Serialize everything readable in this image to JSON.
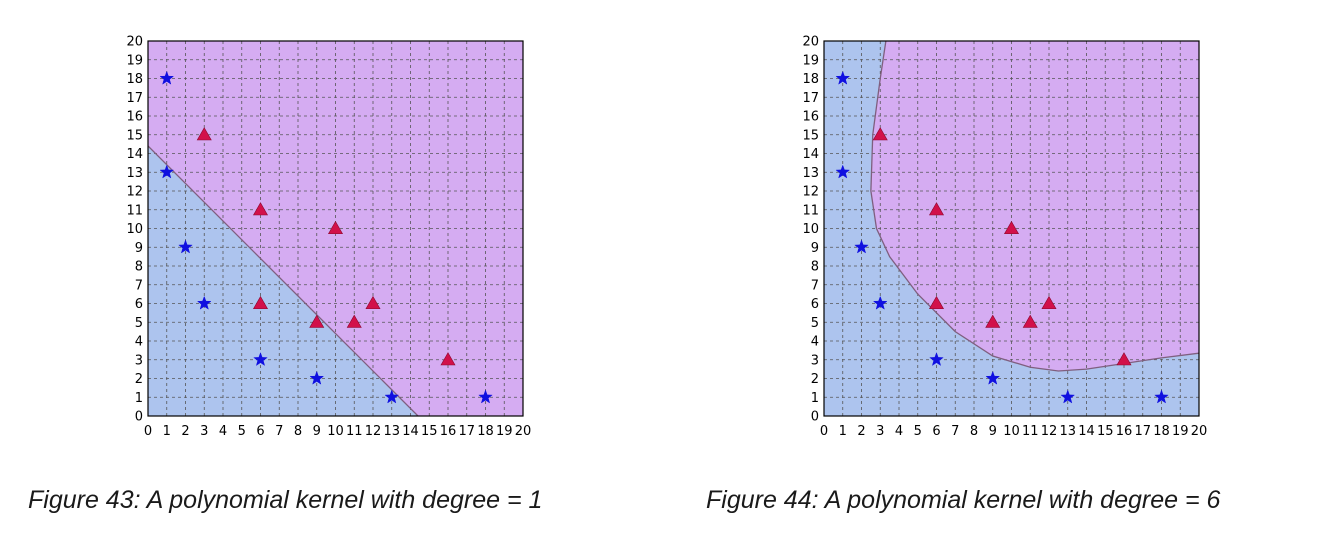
{
  "captions": [
    "Figure 43: A polynomial kernel with degree = 1",
    "Figure 44: A polynomial kernel with degree = 6"
  ],
  "colors": {
    "region_positive": "#d5acf2",
    "region_negative": "#adc4ee",
    "grid": "#555555",
    "boundary": "#7f5f7f",
    "star": "#1010e0",
    "triangle": "#d2104a"
  },
  "chart_data": [
    {
      "type": "scatter",
      "title": "",
      "xlabel": "",
      "ylabel": "",
      "xlim": [
        0,
        20
      ],
      "ylim": [
        0,
        20
      ],
      "grid": true,
      "xticks": [
        "0",
        "1",
        "2",
        "3",
        "4",
        "5",
        "6",
        "7",
        "8",
        "9",
        "10",
        "11",
        "12",
        "13",
        "14",
        "15",
        "16",
        "17",
        "18",
        "19",
        "20"
      ],
      "yticks": [
        "0",
        "1",
        "2",
        "3",
        "4",
        "5",
        "6",
        "7",
        "8",
        "9",
        "10",
        "11",
        "12",
        "13",
        "14",
        "15",
        "16",
        "17",
        "18",
        "19",
        "20"
      ],
      "series": [
        {
          "marker": "star",
          "points": [
            [
              1,
              18
            ],
            [
              1,
              13
            ],
            [
              2,
              9
            ],
            [
              3,
              6
            ],
            [
              6,
              3
            ],
            [
              9,
              2
            ],
            [
              13,
              1
            ],
            [
              18,
              1
            ]
          ]
        },
        {
          "marker": "triangle",
          "points": [
            [
              3,
              15
            ],
            [
              6,
              11
            ],
            [
              6,
              6
            ],
            [
              9,
              5
            ],
            [
              10,
              10
            ],
            [
              11,
              5
            ],
            [
              12,
              6
            ],
            [
              16,
              3
            ]
          ]
        }
      ],
      "decision_boundary": [
        [
          0,
          14.4
        ],
        [
          14.4,
          0
        ]
      ]
    },
    {
      "type": "scatter",
      "title": "",
      "xlabel": "",
      "ylabel": "",
      "xlim": [
        0,
        20
      ],
      "ylim": [
        0,
        20
      ],
      "grid": true,
      "xticks": [
        "0",
        "1",
        "2",
        "3",
        "4",
        "5",
        "6",
        "7",
        "8",
        "9",
        "10",
        "11",
        "12",
        "13",
        "14",
        "15",
        "16",
        "17",
        "18",
        "19",
        "20"
      ],
      "yticks": [
        "0",
        "1",
        "2",
        "3",
        "4",
        "5",
        "6",
        "7",
        "8",
        "9",
        "10",
        "11",
        "12",
        "13",
        "14",
        "15",
        "16",
        "17",
        "18",
        "19",
        "20"
      ],
      "series": [
        {
          "marker": "star",
          "points": [
            [
              1,
              18
            ],
            [
              1,
              13
            ],
            [
              2,
              9
            ],
            [
              3,
              6
            ],
            [
              6,
              3
            ],
            [
              9,
              2
            ],
            [
              13,
              1
            ],
            [
              18,
              1
            ]
          ]
        },
        {
          "marker": "triangle",
          "points": [
            [
              3,
              15
            ],
            [
              6,
              11
            ],
            [
              6,
              6
            ],
            [
              9,
              5
            ],
            [
              10,
              10
            ],
            [
              11,
              5
            ],
            [
              12,
              6
            ],
            [
              16,
              3
            ]
          ]
        }
      ],
      "decision_boundary": [
        [
          3.3,
          20
        ],
        [
          3.0,
          18
        ],
        [
          2.6,
          15
        ],
        [
          2.5,
          12
        ],
        [
          2.8,
          10
        ],
        [
          3.5,
          8.5
        ],
        [
          5,
          6.5
        ],
        [
          7,
          4.5
        ],
        [
          9,
          3.2
        ],
        [
          11,
          2.6
        ],
        [
          12.5,
          2.4
        ],
        [
          14,
          2.5
        ],
        [
          16,
          2.8
        ],
        [
          18,
          3.1
        ],
        [
          20,
          3.35
        ]
      ]
    }
  ]
}
